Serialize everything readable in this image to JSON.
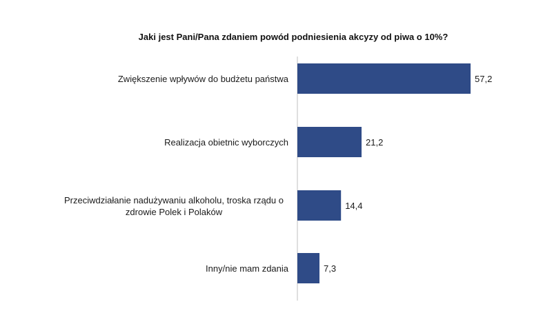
{
  "chart_data": {
    "type": "bar",
    "orientation": "horizontal",
    "title": "Jaki jest Pani/Pana zdaniem powód podniesienia akcyzy od piwa o 10%?",
    "categories": [
      "Zwiększenie wpływów do budżetu państwa",
      "Realizacja obietnic wyborczych",
      "Przeciwdziałanie nadużywaniu alkoholu, troska rządu o zdrowie Polek i Polaków",
      "Inny/nie mam zdania"
    ],
    "value_labels": [
      "57,2",
      "21,2",
      "14,4",
      "7,3"
    ],
    "values": [
      57.2,
      21.2,
      14.4,
      7.3
    ],
    "bar_color": "#2f4b87",
    "axis_color": "#bfbfbf",
    "xlim": [
      0,
      60
    ],
    "grid": false,
    "legend": "none"
  }
}
